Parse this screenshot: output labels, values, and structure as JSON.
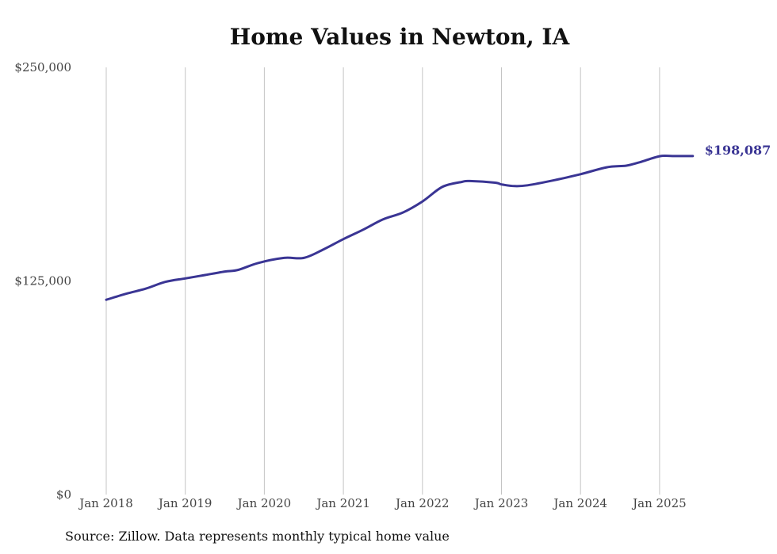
{
  "chart_data": {
    "type": "line",
    "title": "Home Values in Newton, IA",
    "xlabel": "",
    "ylabel": "",
    "ylim": [
      0,
      250000
    ],
    "y_tick_labels": [
      {
        "value": 0,
        "label": "$0"
      },
      {
        "value": 125000,
        "label": "$125,000"
      },
      {
        "value": 250000,
        "label": "$250,000"
      }
    ],
    "x_tick_labels": [
      {
        "value": 2018.0,
        "label": "Jan 2018"
      },
      {
        "value": 2019.0,
        "label": "Jan 2019"
      },
      {
        "value": 2020.0,
        "label": "Jan 2020"
      },
      {
        "value": 2021.0,
        "label": "Jan 2021"
      },
      {
        "value": 2022.0,
        "label": "Jan 2022"
      },
      {
        "value": 2023.0,
        "label": "Jan 2023"
      },
      {
        "value": 2024.0,
        "label": "Jan 2024"
      },
      {
        "value": 2025.0,
        "label": "Jan 2025"
      }
    ],
    "grid": "vertical",
    "line_color": "#3a3594",
    "end_label": "$198,087",
    "series": [
      {
        "x": [
          2018.0,
          2018.25,
          2018.5,
          2018.75,
          2019.0,
          2019.25,
          2019.5,
          2019.67,
          2019.92,
          2020.25,
          2020.5,
          2020.75,
          2021.0,
          2021.25,
          2021.5,
          2021.75,
          2022.0,
          2022.25,
          2022.5,
          2022.6,
          2022.92,
          2023.0,
          2023.17,
          2023.33,
          2023.67,
          2024.0,
          2024.33,
          2024.58,
          2024.75,
          2025.0,
          2025.17,
          2025.42
        ],
        "y": [
          114000,
          117500,
          120500,
          124500,
          126500,
          128500,
          130500,
          131500,
          135500,
          138500,
          138500,
          143500,
          149500,
          155000,
          161000,
          165000,
          171500,
          180000,
          183000,
          183500,
          182500,
          181500,
          180500,
          181000,
          184000,
          187500,
          191500,
          192500,
          194500,
          198000,
          198087,
          198087
        ]
      }
    ]
  },
  "footer": {
    "source": "Source: Zillow. Data represents monthly typical home value"
  }
}
